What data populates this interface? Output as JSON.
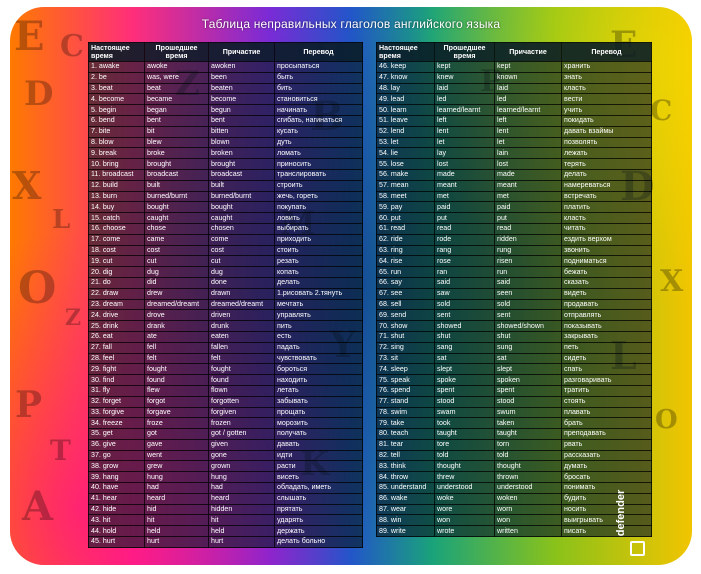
{
  "title": "Таблица неправильных глаголов английского языка",
  "headers": [
    "Настоящее время",
    "Прошедшее время",
    "Причастие",
    "Перевод"
  ],
  "brand": "defender",
  "left": [
    [
      "1. awake",
      "awoke",
      "awoken",
      "просыпаться"
    ],
    [
      "2. be",
      "was, were",
      "been",
      "быть"
    ],
    [
      "3. beat",
      "beat",
      "beaten",
      "бить"
    ],
    [
      "4. become",
      "became",
      "become",
      "становиться"
    ],
    [
      "5. begin",
      "began",
      "begun",
      "начинать"
    ],
    [
      "6. bend",
      "bent",
      "bent",
      "сгибать, нагинаться"
    ],
    [
      "7. bite",
      "bit",
      "bitten",
      "кусать"
    ],
    [
      "8. blow",
      "blew",
      "blown",
      "дуть"
    ],
    [
      "9. break",
      "broke",
      "broken",
      "ломать"
    ],
    [
      "10. bring",
      "brought",
      "brought",
      "приносить"
    ],
    [
      "11. broadcast",
      "broadcast",
      "broadcast",
      "транслировать"
    ],
    [
      "12. build",
      "built",
      "built",
      "строить"
    ],
    [
      "13. burn",
      "burned/burnt",
      "burned/burnt",
      "жечь, гореть"
    ],
    [
      "14. buy",
      "bought",
      "bought",
      "покупать"
    ],
    [
      "15. catch",
      "caught",
      "caught",
      "ловить"
    ],
    [
      "16. choose",
      "chose",
      "chosen",
      "выбирать"
    ],
    [
      "17. come",
      "came",
      "come",
      "приходить"
    ],
    [
      "18. cost",
      "cost",
      "cost",
      "стоить"
    ],
    [
      "19. cut",
      "cut",
      "cut",
      "резать"
    ],
    [
      "20. dig",
      "dug",
      "dug",
      "копать"
    ],
    [
      "21. do",
      "did",
      "done",
      "делать"
    ],
    [
      "22. draw",
      "drew",
      "drawn",
      "1.рисовать 2.тянуть"
    ],
    [
      "23. dream",
      "dreamed/dreamt",
      "dreamed/dreamt",
      "мечтать"
    ],
    [
      "24. drive",
      "drove",
      "driven",
      "управлять"
    ],
    [
      "25. drink",
      "drank",
      "drunk",
      "пить"
    ],
    [
      "26. eat",
      "ate",
      "eaten",
      "есть"
    ],
    [
      "27. fall",
      "fell",
      "fallen",
      "падать"
    ],
    [
      "28. feel",
      "felt",
      "felt",
      "чувствовать"
    ],
    [
      "29. fight",
      "fought",
      "fought",
      "бороться"
    ],
    [
      "30. find",
      "found",
      "found",
      "находить"
    ],
    [
      "31. fly",
      "flew",
      "flown",
      "летать"
    ],
    [
      "32. forget",
      "forgot",
      "forgotten",
      "забывать"
    ],
    [
      "33. forgive",
      "forgave",
      "forgiven",
      "прощать"
    ],
    [
      "34. freeze",
      "froze",
      "frozen",
      "морозить"
    ],
    [
      "35. get",
      "got",
      "got / gotten",
      "получать"
    ],
    [
      "36. give",
      "gave",
      "given",
      "давать"
    ],
    [
      "37. go",
      "went",
      "gone",
      "идти"
    ],
    [
      "38. grow",
      "grew",
      "grown",
      "расти"
    ],
    [
      "39. hang",
      "hung",
      "hung",
      "висеть"
    ],
    [
      "40. have",
      "had",
      "had",
      "обладать, иметь"
    ],
    [
      "41. hear",
      "heard",
      "heard",
      "слышать"
    ],
    [
      "42. hide",
      "hid",
      "hidden",
      "прятать"
    ],
    [
      "43. hit",
      "hit",
      "hit",
      "ударять"
    ],
    [
      "44. hold",
      "held",
      "held",
      "держать"
    ],
    [
      "45. hurt",
      "hurt",
      "hurt",
      "делать больно"
    ]
  ],
  "right": [
    [
      "46. keep",
      "kept",
      "kept",
      "хранить"
    ],
    [
      "47. know",
      "knew",
      "known",
      "знать"
    ],
    [
      "48. lay",
      "laid",
      "laid",
      "класть"
    ],
    [
      "49. lead",
      "led",
      "led",
      "вести"
    ],
    [
      "50. learn",
      "learned/learnt",
      "learned/learnt",
      "учить"
    ],
    [
      "51. leave",
      "left",
      "left",
      "покидать"
    ],
    [
      "52. lend",
      "lent",
      "lent",
      "давать взаймы"
    ],
    [
      "53. let",
      "let",
      "let",
      "позволять"
    ],
    [
      "54. lie",
      "lay",
      "lain",
      "лежать"
    ],
    [
      "55. lose",
      "lost",
      "lost",
      "терять"
    ],
    [
      "56. make",
      "made",
      "made",
      "делать"
    ],
    [
      "57. mean",
      "meant",
      "meant",
      "намереваться"
    ],
    [
      "58. meet",
      "met",
      "met",
      "встречать"
    ],
    [
      "59. pay",
      "paid",
      "paid",
      "платить"
    ],
    [
      "60. put",
      "put",
      "put",
      "класть"
    ],
    [
      "61. read",
      "read",
      "read",
      "читать"
    ],
    [
      "62. ride",
      "rode",
      "ridden",
      "ездить верхом"
    ],
    [
      "63. ring",
      "rang",
      "rung",
      "звонить"
    ],
    [
      "64. rise",
      "rose",
      "risen",
      "подниматься"
    ],
    [
      "65. run",
      "ran",
      "run",
      "бежать"
    ],
    [
      "66. say",
      "said",
      "said",
      "сказать"
    ],
    [
      "67. see",
      "saw",
      "seen",
      "видеть"
    ],
    [
      "68. sell",
      "sold",
      "sold",
      "продавать"
    ],
    [
      "69. send",
      "sent",
      "sent",
      "отправлять"
    ],
    [
      "70. show",
      "showed",
      "showed/shown",
      "показывать"
    ],
    [
      "71. shut",
      "shut",
      "shut",
      "закрывать"
    ],
    [
      "72. sing",
      "sang",
      "sung",
      "петь"
    ],
    [
      "73. sit",
      "sat",
      "sat",
      "сидеть"
    ],
    [
      "74. sleep",
      "slept",
      "slept",
      "спать"
    ],
    [
      "75. speak",
      "spoke",
      "spoken",
      "разговаривать"
    ],
    [
      "76. spend",
      "spent",
      "spent",
      "тратить"
    ],
    [
      "77. stand",
      "stood",
      "stood",
      "стоять"
    ],
    [
      "78. swim",
      "swam",
      "swum",
      "плавать"
    ],
    [
      "79. take",
      "took",
      "taken",
      "брать"
    ],
    [
      "80. teach",
      "taught",
      "taught",
      "преподавать"
    ],
    [
      "81. tear",
      "tore",
      "torn",
      "рвать"
    ],
    [
      "82. tell",
      "told",
      "told",
      "рассказать"
    ],
    [
      "83. think",
      "thought",
      "thought",
      "думать"
    ],
    [
      "84. throw",
      "threw",
      "thrown",
      "бросать"
    ],
    [
      "85. understand",
      "understood",
      "understood",
      "понимать"
    ],
    [
      "86. wake",
      "woke",
      "woken",
      "будить"
    ],
    [
      "87. wear",
      "wore",
      "worn",
      "носить"
    ],
    [
      "88. win",
      "won",
      "won",
      "выигрывать"
    ],
    [
      "89. write",
      "wrote",
      "written",
      "писать"
    ]
  ],
  "background_letters": [
    "E",
    "C",
    "D",
    "X",
    "L",
    "O",
    "Z",
    "P",
    "T",
    "A",
    "B",
    "M",
    "Y",
    "K"
  ]
}
